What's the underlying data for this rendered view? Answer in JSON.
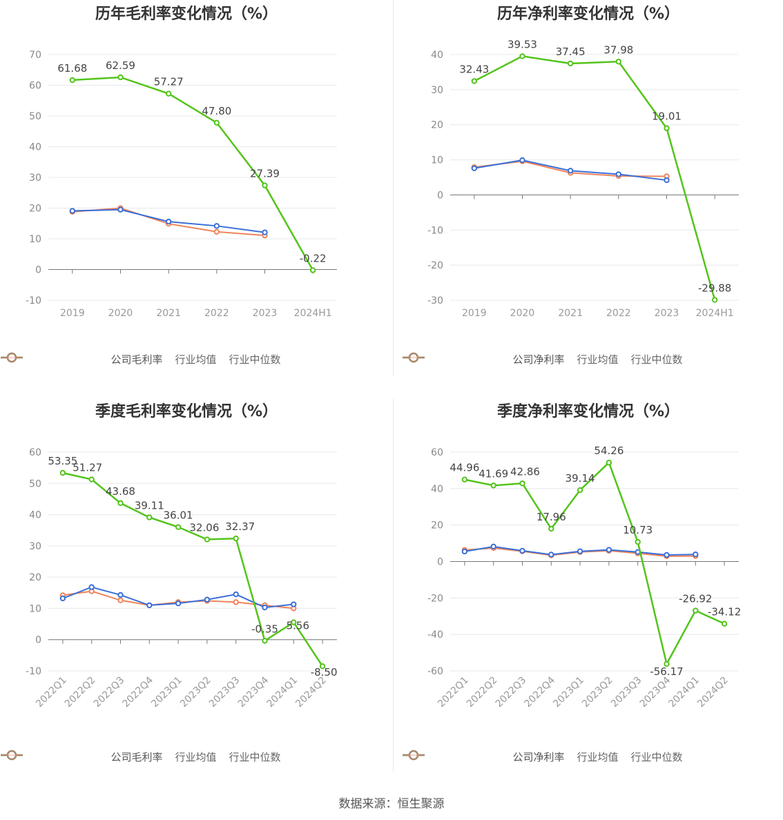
{
  "footer": {
    "source": "数据来源：恒生聚源"
  },
  "chart_data": [
    {
      "type": "line",
      "title": "历年毛利率变化情况（%）",
      "categories": [
        "2019",
        "2020",
        "2021",
        "2022",
        "2023",
        "2024H1"
      ],
      "ylim": [
        -10,
        70
      ],
      "yticks": [
        -10,
        0,
        10,
        20,
        30,
        40,
        50,
        60,
        70
      ],
      "tick_rotate": false,
      "grid": true,
      "legend_position": "bottom",
      "series": [
        {
          "name": "公司毛利率",
          "color": "#52c41a",
          "labels": true,
          "values": [
            61.68,
            62.59,
            57.27,
            47.8,
            27.39,
            -0.22
          ],
          "label_text": [
            "61.68",
            "62.59",
            "57.27",
            "47.80",
            "27.39",
            "-0.22"
          ]
        },
        {
          "name": "行业均值",
          "color": "#3a6fd8",
          "values": [
            19.1,
            19.5,
            15.6,
            14.2,
            12.1,
            null
          ]
        },
        {
          "name": "行业中位数",
          "color": "#f0845a",
          "values": [
            18.8,
            20.0,
            14.9,
            12.3,
            11.1,
            null
          ]
        }
      ]
    },
    {
      "type": "line",
      "title": "历年净利率变化情况（%）",
      "categories": [
        "2019",
        "2020",
        "2021",
        "2022",
        "2023",
        "2024H1"
      ],
      "ylim": [
        -30,
        40
      ],
      "yticks": [
        -30,
        -20,
        -10,
        0,
        10,
        20,
        30,
        40
      ],
      "tick_rotate": false,
      "grid": true,
      "legend_position": "bottom",
      "series": [
        {
          "name": "公司净利率",
          "color": "#52c41a",
          "labels": true,
          "values": [
            32.43,
            39.53,
            37.45,
            37.98,
            19.01,
            -29.88
          ],
          "label_text": [
            "32.43",
            "39.53",
            "37.45",
            "37.98",
            "19.01",
            "-29.88"
          ]
        },
        {
          "name": "行业均值",
          "color": "#3a6fd8",
          "values": [
            7.6,
            9.9,
            6.9,
            5.9,
            4.2,
            null
          ]
        },
        {
          "name": "行业中位数",
          "color": "#f0845a",
          "values": [
            7.9,
            9.6,
            6.3,
            5.4,
            5.3,
            null
          ]
        }
      ]
    },
    {
      "type": "line",
      "title": "季度毛利率变化情况（%）",
      "categories": [
        "2022Q1",
        "2022Q2",
        "2022Q3",
        "2022Q4",
        "2023Q1",
        "2023Q2",
        "2023Q3",
        "2023Q4",
        "2024Q1",
        "2024Q2"
      ],
      "ylim": [
        -10,
        60
      ],
      "yticks": [
        -10,
        0,
        10,
        20,
        30,
        40,
        50,
        60
      ],
      "tick_rotate": true,
      "grid": true,
      "legend_position": "bottom",
      "series": [
        {
          "name": "公司毛利率",
          "color": "#52c41a",
          "labels": true,
          "values": [
            53.35,
            51.27,
            43.68,
            39.11,
            36.01,
            32.06,
            32.37,
            -0.35,
            5.56,
            -8.5
          ],
          "label_text": [
            "53.35",
            "51.27",
            "43.68",
            "39.11",
            "36.01",
            "32.06",
            "32.37",
            "-0.35",
            "5.56",
            "-8.50"
          ]
        },
        {
          "name": "行业均值",
          "color": "#3a6fd8",
          "values": [
            13.2,
            16.8,
            14.3,
            11.0,
            11.6,
            12.8,
            14.5,
            10.3,
            11.3,
            null
          ]
        },
        {
          "name": "行业中位数",
          "color": "#f0845a",
          "values": [
            14.2,
            15.5,
            12.6,
            11.0,
            12.0,
            12.4,
            12.0,
            11.0,
            10.0,
            null
          ]
        }
      ]
    },
    {
      "type": "line",
      "title": "季度净利率变化情况（%）",
      "categories": [
        "2022Q1",
        "2022Q2",
        "2022Q3",
        "2022Q4",
        "2023Q1",
        "2023Q2",
        "2023Q3",
        "2023Q4",
        "2024Q1",
        "2024Q2"
      ],
      "ylim": [
        -60,
        60
      ],
      "yticks": [
        -60,
        -40,
        -20,
        0,
        20,
        40,
        60
      ],
      "tick_rotate": true,
      "grid": true,
      "legend_position": "bottom",
      "series": [
        {
          "name": "公司净利率",
          "color": "#52c41a",
          "labels": true,
          "values": [
            44.96,
            41.69,
            42.86,
            17.96,
            39.14,
            54.26,
            10.73,
            -56.17,
            -26.92,
            -34.12
          ],
          "label_text": [
            "44.96",
            "41.69",
            "42.86",
            "17.96",
            "39.14",
            "54.26",
            "10.73",
            "-56.17",
            "-26.92",
            "-34.12"
          ]
        },
        {
          "name": "行业均值",
          "color": "#3a6fd8",
          "values": [
            5.5,
            8.2,
            5.9,
            3.8,
            5.6,
            6.4,
            5.2,
            3.6,
            3.9,
            null
          ]
        },
        {
          "name": "行业中位数",
          "color": "#f0845a",
          "values": [
            6.3,
            7.4,
            5.6,
            3.4,
            5.2,
            5.9,
            4.5,
            2.9,
            3.0,
            null
          ]
        }
      ]
    }
  ]
}
